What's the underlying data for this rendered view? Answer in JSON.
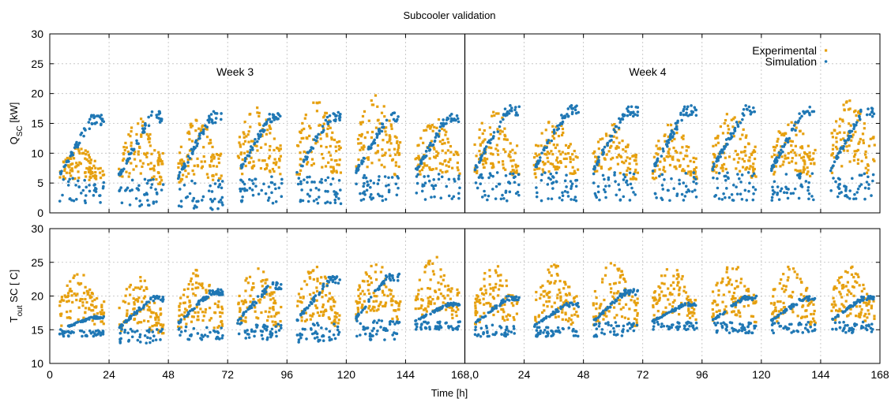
{
  "chart_data": {
    "type": "scatter",
    "title": "Subcooler validation",
    "xlabel": "Time [h]",
    "colors": {
      "experimental": "#e6a00f",
      "simulation": "#1f77b4"
    },
    "legend": {
      "placement": "top-right",
      "entries": [
        {
          "name": "Experimental",
          "color": "#e6a00f"
        },
        {
          "name": "Simulation",
          "color": "#1f77b4"
        }
      ]
    },
    "annotations": [
      {
        "text": "Week 3",
        "x": 75,
        "y": 23
      },
      {
        "text": "Week 4",
        "x": 242,
        "y": 23
      }
    ],
    "x_axis": {
      "range": [
        0,
        336
      ],
      "tick_labels": [
        "0",
        "24",
        "48",
        "72",
        "96",
        "120",
        "144",
        "168,0",
        "24",
        "48",
        "72",
        "96",
        "120",
        "144",
        "168"
      ]
    },
    "week_boundary_x": 168,
    "panels": [
      {
        "id": "q_sc",
        "ylabel_main": "Q",
        "ylabel_sub": "SC",
        "ylabel_rest": " [kW]",
        "ylim": [
          0,
          30
        ],
        "yticks": [
          0,
          5,
          10,
          15,
          20,
          25,
          30
        ],
        "days": [
          {
            "start": 4,
            "end": 22,
            "sim_min": 1.5,
            "sim_max": 16.5,
            "exp_min": 4,
            "exp_max": 11
          },
          {
            "start": 28,
            "end": 46,
            "sim_min": 1,
            "sim_max": 17,
            "exp_min": 3,
            "exp_max": 16
          },
          {
            "start": 52,
            "end": 70,
            "sim_min": 0.5,
            "sim_max": 17,
            "exp_min": 3,
            "exp_max": 16
          },
          {
            "start": 76,
            "end": 94,
            "sim_min": 1.5,
            "sim_max": 17,
            "exp_min": 4,
            "exp_max": 18
          },
          {
            "start": 100,
            "end": 118,
            "sim_min": 1.5,
            "sim_max": 17,
            "exp_min": 4,
            "exp_max": 19
          },
          {
            "start": 124,
            "end": 142,
            "sim_min": 2,
            "sim_max": 17,
            "exp_min": 4,
            "exp_max": 20
          },
          {
            "start": 148,
            "end": 166,
            "sim_min": 2,
            "sim_max": 17,
            "exp_min": 4,
            "exp_max": 16
          },
          {
            "start": 172,
            "end": 190,
            "sim_min": 2,
            "sim_max": 18,
            "exp_min": 4,
            "exp_max": 18
          },
          {
            "start": 196,
            "end": 214,
            "sim_min": 2,
            "sim_max": 18,
            "exp_min": 4,
            "exp_max": 16
          },
          {
            "start": 220,
            "end": 238,
            "sim_min": 2,
            "sim_max": 18,
            "exp_min": 4,
            "exp_max": 15
          },
          {
            "start": 244,
            "end": 262,
            "sim_min": 2,
            "sim_max": 18,
            "exp_min": 4,
            "exp_max": 15
          },
          {
            "start": 268,
            "end": 286,
            "sim_min": 2,
            "sim_max": 18,
            "exp_min": 4,
            "exp_max": 17
          },
          {
            "start": 292,
            "end": 310,
            "sim_min": 2,
            "sim_max": 18,
            "exp_min": 4,
            "exp_max": 16
          },
          {
            "start": 316,
            "end": 334,
            "sim_min": 2,
            "sim_max": 18,
            "exp_min": 4,
            "exp_max": 20
          }
        ]
      },
      {
        "id": "t_out_sc",
        "ylabel_main": "T",
        "ylabel_sub": "out",
        "ylabel_rest": " SC [ C]",
        "ylim": [
          10,
          30
        ],
        "yticks": [
          10,
          15,
          20,
          25,
          30
        ],
        "days": [
          {
            "start": 4,
            "end": 22,
            "sim_min": 14,
            "sim_max": 17,
            "exp_min": 14,
            "exp_max": 23.5
          },
          {
            "start": 28,
            "end": 46,
            "sim_min": 13,
            "sim_max": 20,
            "exp_min": 13,
            "exp_max": 23
          },
          {
            "start": 52,
            "end": 70,
            "sim_min": 13.5,
            "sim_max": 21,
            "exp_min": 13.5,
            "exp_max": 24
          },
          {
            "start": 76,
            "end": 94,
            "sim_min": 13.5,
            "sim_max": 22,
            "exp_min": 14,
            "exp_max": 24.5
          },
          {
            "start": 100,
            "end": 118,
            "sim_min": 13,
            "sim_max": 23,
            "exp_min": 14,
            "exp_max": 24.5
          },
          {
            "start": 124,
            "end": 142,
            "sim_min": 13.5,
            "sim_max": 23.5,
            "exp_min": 15,
            "exp_max": 25
          },
          {
            "start": 148,
            "end": 166,
            "sim_min": 15,
            "sim_max": 19,
            "exp_min": 15,
            "exp_max": 26
          },
          {
            "start": 172,
            "end": 190,
            "sim_min": 14,
            "sim_max": 20,
            "exp_min": 14,
            "exp_max": 25
          },
          {
            "start": 196,
            "end": 214,
            "sim_min": 14,
            "sim_max": 19,
            "exp_min": 14,
            "exp_max": 25
          },
          {
            "start": 220,
            "end": 238,
            "sim_min": 14,
            "sim_max": 21,
            "exp_min": 14,
            "exp_max": 25
          },
          {
            "start": 244,
            "end": 262,
            "sim_min": 15,
            "sim_max": 19,
            "exp_min": 15,
            "exp_max": 24.5
          },
          {
            "start": 268,
            "end": 286,
            "sim_min": 14.5,
            "sim_max": 20,
            "exp_min": 14.5,
            "exp_max": 25
          },
          {
            "start": 292,
            "end": 310,
            "sim_min": 14.5,
            "sim_max": 20,
            "exp_min": 14,
            "exp_max": 25
          },
          {
            "start": 316,
            "end": 334,
            "sim_min": 14.5,
            "sim_max": 20,
            "exp_min": 14.5,
            "exp_max": 24.5
          }
        ]
      }
    ]
  }
}
